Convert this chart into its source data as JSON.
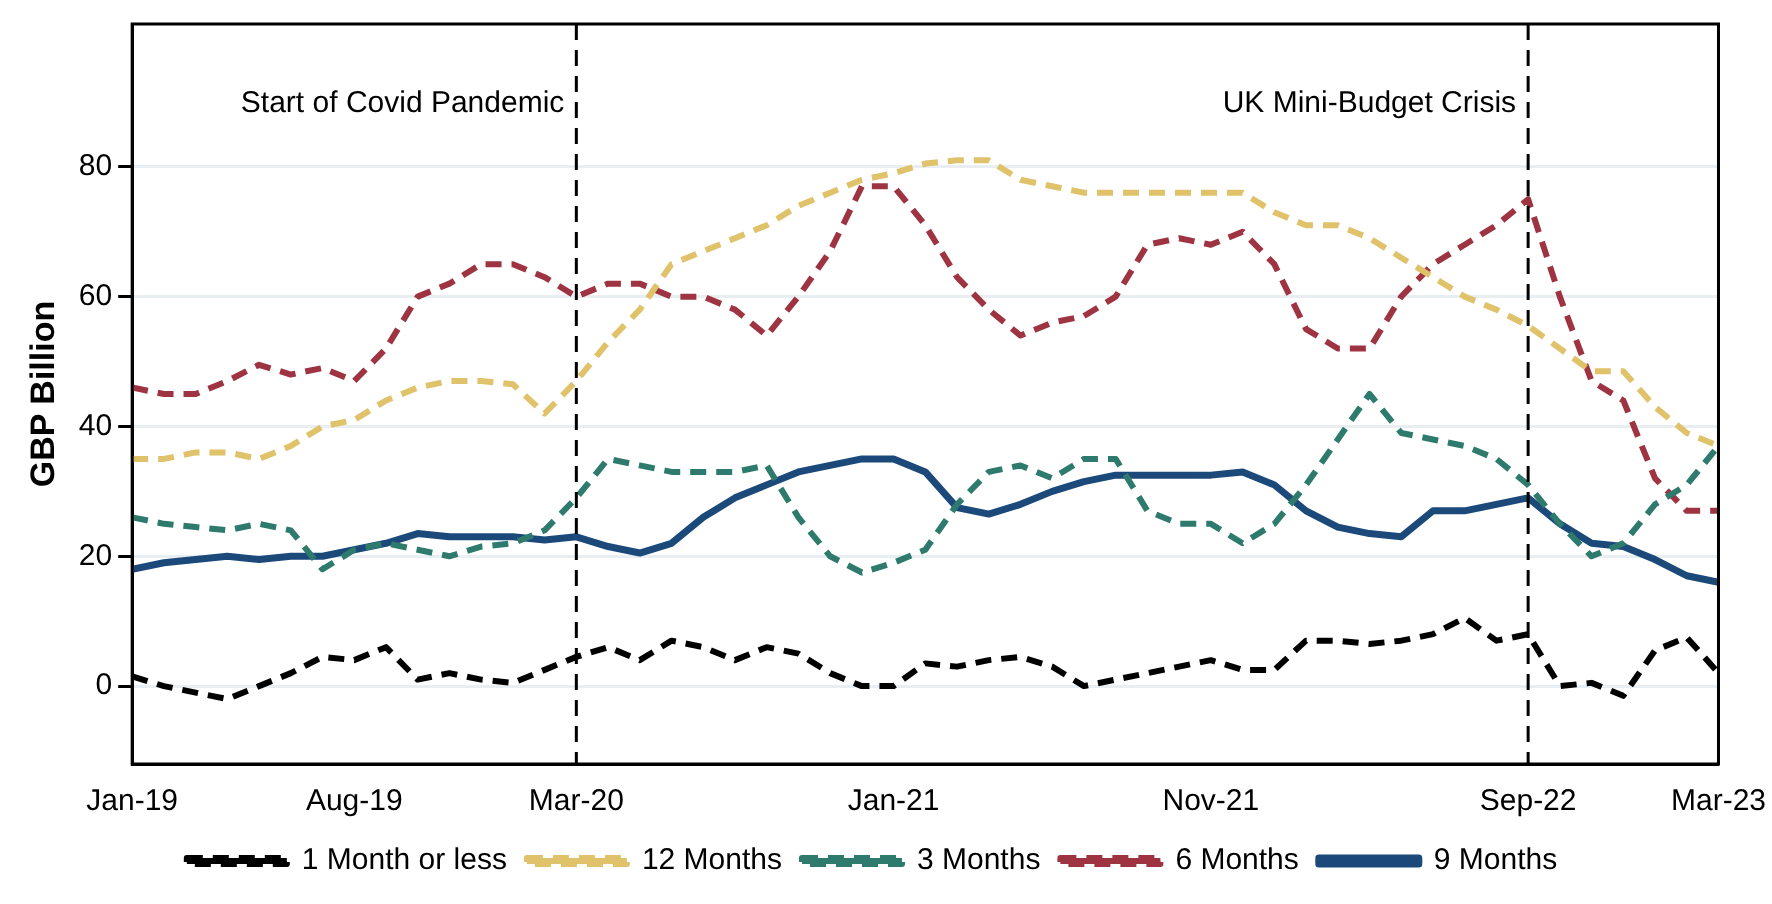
{
  "chart_data": {
    "type": "line",
    "ylabel": "GBP Billion",
    "x": [
      "2019-01",
      "2019-02",
      "2019-03",
      "2019-04",
      "2019-05",
      "2019-06",
      "2019-07",
      "2019-08",
      "2019-09",
      "2019-10",
      "2019-11",
      "2019-12",
      "2020-01",
      "2020-02",
      "2020-03",
      "2020-04",
      "2020-05",
      "2020-06",
      "2020-07",
      "2020-08",
      "2020-09",
      "2020-10",
      "2020-11",
      "2020-12",
      "2021-01",
      "2021-02",
      "2021-03",
      "2021-04",
      "2021-05",
      "2021-06",
      "2021-07",
      "2021-08",
      "2021-09",
      "2021-10",
      "2021-11",
      "2021-12",
      "2022-01",
      "2022-02",
      "2022-03",
      "2022-04",
      "2022-05",
      "2022-06",
      "2022-07",
      "2022-08",
      "2022-09",
      "2022-10",
      "2022-11",
      "2022-12",
      "2023-01",
      "2023-02",
      "2023-03"
    ],
    "series": [
      {
        "name": "1 Month or less",
        "color": "#000000",
        "line_style": "dashed",
        "values": [
          1.5,
          0,
          -1,
          -2,
          0,
          2,
          4.5,
          4,
          6,
          1,
          2,
          1,
          0.5,
          2.5,
          4.5,
          6,
          4,
          7,
          6,
          4,
          6,
          5,
          2,
          0,
          0,
          3.5,
          3,
          4,
          4.5,
          3,
          0,
          1,
          2,
          3,
          4,
          2.5,
          2.5,
          7,
          7,
          6.5,
          7,
          8,
          10.5,
          7,
          8,
          0,
          0.5,
          -1.5,
          5.5,
          7.5,
          2
        ]
      },
      {
        "name": "12 Months",
        "color": "#dfc26a",
        "line_style": "dashed",
        "values": [
          35,
          35,
          36,
          36,
          35,
          37,
          40,
          41,
          44,
          46,
          47,
          47,
          46.5,
          42,
          47,
          53,
          58,
          65,
          67,
          69,
          71,
          74,
          76,
          78,
          79,
          80.5,
          81,
          81,
          78,
          77,
          76,
          76,
          76,
          76,
          76,
          76,
          73,
          71,
          71,
          69,
          66,
          63,
          60,
          58,
          55.5,
          52,
          48.5,
          48.5,
          43,
          39,
          37
        ]
      },
      {
        "name": "3 Months",
        "color": "#2e7b6d",
        "line_style": "dashed",
        "values": [
          26,
          25,
          24.5,
          24,
          25,
          24,
          18,
          21,
          22,
          21,
          20,
          21.5,
          22,
          24,
          29,
          35,
          34,
          33,
          33,
          33,
          34,
          26,
          20,
          17.5,
          19,
          21,
          28,
          33,
          34,
          32,
          35,
          35,
          27,
          25,
          25,
          22,
          25,
          31,
          38,
          45,
          39,
          38,
          37,
          35,
          31,
          25,
          20,
          22,
          28,
          31,
          37
        ]
      },
      {
        "name": "6 Months",
        "color": "#9e3441",
        "line_style": "dashed",
        "values": [
          46,
          45,
          45,
          47,
          49.5,
          48,
          49,
          47,
          52,
          60,
          62,
          65,
          65,
          63,
          60,
          62,
          62,
          60,
          60,
          58,
          54,
          60,
          67,
          77,
          77,
          71,
          63,
          58,
          54,
          56,
          57,
          60,
          68,
          69,
          68,
          70,
          65,
          55,
          52,
          52,
          60,
          65,
          68,
          71,
          75,
          60,
          47,
          44,
          32,
          27,
          27
        ]
      },
      {
        "name": "9 Months",
        "color": "#1b4a7a",
        "line_style": "solid",
        "values": [
          18,
          19,
          19.5,
          20,
          19.5,
          20,
          20,
          21,
          22,
          23.5,
          23,
          23,
          23,
          22.5,
          23,
          21.5,
          20.5,
          22,
          26,
          29,
          31,
          33,
          34,
          35,
          35,
          33,
          27.5,
          26.5,
          28,
          30,
          31.5,
          32.5,
          32.5,
          32.5,
          32.5,
          33,
          31,
          27,
          24.5,
          23.5,
          23,
          27,
          27,
          28,
          29,
          25,
          22,
          21.5,
          19.5,
          17,
          16
        ]
      }
    ],
    "xlim": [
      "2019-01",
      "2023-03"
    ],
    "xticks": [
      {
        "value": "2019-01",
        "label": "Jan-19"
      },
      {
        "value": "2019-08",
        "label": "Aug-19"
      },
      {
        "value": "2020-03",
        "label": "Mar-20"
      },
      {
        "value": "2021-01",
        "label": "Jan-21"
      },
      {
        "value": "2021-11",
        "label": "Nov-21"
      },
      {
        "value": "2022-09",
        "label": "Sep-22"
      },
      {
        "value": "2023-03",
        "label": "Mar-23"
      }
    ],
    "ylim": [
      -12,
      102
    ],
    "yticks": [
      0,
      20,
      40,
      60,
      80
    ],
    "ref_lines": [
      {
        "axis": "x",
        "value": "2020-03",
        "label": "Start of Covid Pandemic",
        "color": "#000000",
        "line_style": "dashed"
      },
      {
        "axis": "x",
        "value": "2022-09",
        "label": "UK Mini-Budget Crisis",
        "color": "#000000",
        "line_style": "dashed"
      }
    ],
    "grid": "y",
    "legend": "bottom",
    "marker": "none"
  }
}
